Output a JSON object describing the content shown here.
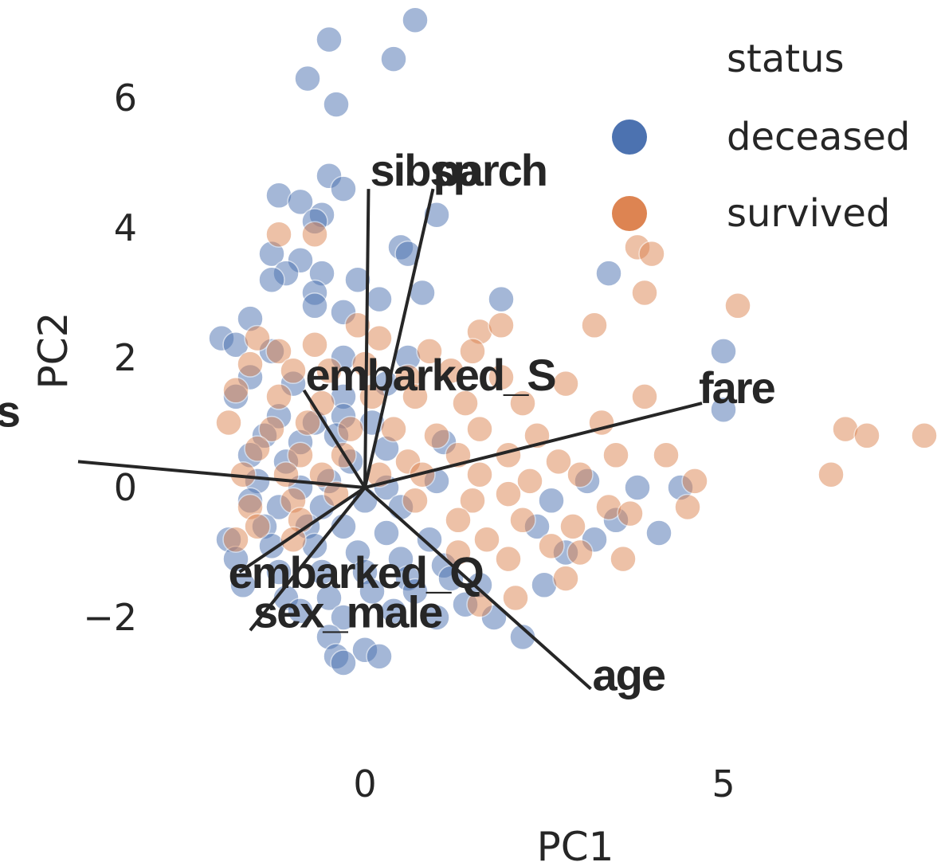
{
  "chart_data": {
    "type": "scatter",
    "xlabel": "PC1",
    "ylabel": "PC2",
    "xlim": [
      -4.25,
      8.0
    ],
    "ylim": [
      -3.6,
      7.3
    ],
    "x_ticks": [
      {
        "value": 0,
        "label": "0"
      },
      {
        "value": 5,
        "label": "5"
      }
    ],
    "y_ticks": [
      {
        "value": -2,
        "label": "−2"
      },
      {
        "value": 0,
        "label": "0"
      },
      {
        "value": 2,
        "label": "2"
      },
      {
        "value": 4,
        "label": "4"
      },
      {
        "value": 6,
        "label": "6"
      }
    ],
    "grid": false,
    "legend": {
      "title": "status",
      "placement": "top-right",
      "entries": [
        {
          "name": "deceased",
          "color": "#4c72b0"
        },
        {
          "name": "survived",
          "color": "#dd8452"
        }
      ]
    },
    "series": [
      {
        "name": "deceased",
        "color": "#4c72b0",
        "points": [
          [
            0.7,
            7.2
          ],
          [
            -0.5,
            6.9
          ],
          [
            0.4,
            6.6
          ],
          [
            -0.8,
            6.3
          ],
          [
            -0.4,
            5.9
          ],
          [
            -0.5,
            4.8
          ],
          [
            -0.3,
            4.6
          ],
          [
            -1.2,
            4.5
          ],
          [
            -0.9,
            4.4
          ],
          [
            -0.6,
            4.2
          ],
          [
            -0.7,
            4.1
          ],
          [
            1.0,
            4.2
          ],
          [
            -1.3,
            3.6
          ],
          [
            -0.9,
            3.5
          ],
          [
            0.5,
            3.7
          ],
          [
            0.6,
            3.6
          ],
          [
            -1.1,
            3.3
          ],
          [
            -0.6,
            3.3
          ],
          [
            -1.3,
            3.2
          ],
          [
            -0.1,
            3.2
          ],
          [
            -0.7,
            3.0
          ],
          [
            0.8,
            3.0
          ],
          [
            0.2,
            2.9
          ],
          [
            -0.7,
            2.8
          ],
          [
            1.9,
            2.9
          ],
          [
            -1.6,
            2.6
          ],
          [
            -0.3,
            2.7
          ],
          [
            3.4,
            3.3
          ],
          [
            -2.0,
            2.3
          ],
          [
            -1.8,
            2.2
          ],
          [
            -1.3,
            2.1
          ],
          [
            -0.3,
            2.0
          ],
          [
            0.6,
            2.0
          ],
          [
            5.0,
            2.1
          ],
          [
            -1.6,
            1.7
          ],
          [
            -1.0,
            1.6
          ],
          [
            -0.3,
            1.4
          ],
          [
            0.3,
            1.6
          ],
          [
            -1.8,
            1.4
          ],
          [
            -1.2,
            1.1
          ],
          [
            -0.7,
            1.0
          ],
          [
            -0.3,
            1.1
          ],
          [
            0.1,
            1.0
          ],
          [
            5.0,
            1.2
          ],
          [
            -1.4,
            0.8
          ],
          [
            -0.9,
            0.7
          ],
          [
            -0.4,
            0.8
          ],
          [
            0.3,
            0.6
          ],
          [
            1.1,
            0.7
          ],
          [
            -1.6,
            0.5
          ],
          [
            -1.1,
            0.4
          ],
          [
            -0.2,
            0.4
          ],
          [
            -1.5,
            0.1
          ],
          [
            -0.9,
            0.0
          ],
          [
            -0.5,
            0.1
          ],
          [
            0.3,
            0.0
          ],
          [
            1.0,
            0.1
          ],
          [
            3.1,
            0.1
          ],
          [
            3.8,
            0.0
          ],
          [
            4.4,
            0.0
          ],
          [
            -1.6,
            -0.2
          ],
          [
            -1.2,
            -0.3
          ],
          [
            -0.6,
            -0.3
          ],
          [
            0.0,
            -0.2
          ],
          [
            0.5,
            -0.3
          ],
          [
            2.6,
            -0.2
          ],
          [
            3.5,
            -0.5
          ],
          [
            4.1,
            -0.7
          ],
          [
            -1.4,
            -0.6
          ],
          [
            -0.8,
            -0.6
          ],
          [
            -0.3,
            -0.6
          ],
          [
            0.3,
            -0.7
          ],
          [
            0.9,
            -0.8
          ],
          [
            2.4,
            -0.6
          ],
          [
            3.2,
            -0.8
          ],
          [
            -1.9,
            -0.8
          ],
          [
            -1.3,
            -0.9
          ],
          [
            -0.7,
            -0.9
          ],
          [
            -0.1,
            -1.0
          ],
          [
            0.5,
            -1.1
          ],
          [
            1.1,
            -1.2
          ],
          [
            2.8,
            -1.0
          ],
          [
            -1.8,
            -1.1
          ],
          [
            -1.2,
            -1.3
          ],
          [
            -0.6,
            -1.3
          ],
          [
            0.0,
            -1.3
          ],
          [
            0.6,
            -1.4
          ],
          [
            1.2,
            -1.4
          ],
          [
            1.6,
            -1.5
          ],
          [
            2.5,
            -1.5
          ],
          [
            -1.7,
            -1.5
          ],
          [
            -1.1,
            -1.7
          ],
          [
            -0.5,
            -1.7
          ],
          [
            0.1,
            -1.6
          ],
          [
            0.7,
            -1.6
          ],
          [
            1.4,
            -1.8
          ],
          [
            -0.9,
            -1.9
          ],
          [
            -0.3,
            -2.0
          ],
          [
            0.4,
            -1.9
          ],
          [
            1.0,
            -2.0
          ],
          [
            1.8,
            -2.0
          ],
          [
            -0.5,
            -2.3
          ],
          [
            2.2,
            -2.3
          ],
          [
            -0.4,
            -2.6
          ],
          [
            0.0,
            -2.5
          ],
          [
            0.2,
            -2.6
          ],
          [
            -0.3,
            -2.7
          ]
        ]
      },
      {
        "name": "survived",
        "color": "#dd8452",
        "points": [
          [
            -1.2,
            3.9
          ],
          [
            -0.7,
            3.9
          ],
          [
            3.8,
            3.7
          ],
          [
            4.0,
            3.6
          ],
          [
            3.9,
            3.0
          ],
          [
            5.2,
            2.8
          ],
          [
            3.2,
            2.5
          ],
          [
            1.6,
            2.4
          ],
          [
            -0.1,
            2.5
          ],
          [
            1.9,
            2.5
          ],
          [
            -1.5,
            2.3
          ],
          [
            -1.2,
            2.1
          ],
          [
            -0.7,
            2.2
          ],
          [
            0.2,
            2.3
          ],
          [
            0.9,
            2.1
          ],
          [
            1.5,
            2.1
          ],
          [
            -1.6,
            1.9
          ],
          [
            -1.0,
            1.8
          ],
          [
            -0.5,
            1.8
          ],
          [
            0.0,
            1.9
          ],
          [
            0.6,
            1.7
          ],
          [
            1.2,
            1.8
          ],
          [
            1.9,
            1.7
          ],
          [
            2.8,
            1.6
          ],
          [
            -1.8,
            1.5
          ],
          [
            -1.2,
            1.4
          ],
          [
            -0.6,
            1.3
          ],
          [
            0.1,
            1.4
          ],
          [
            0.7,
            1.4
          ],
          [
            1.4,
            1.3
          ],
          [
            2.2,
            1.3
          ],
          [
            3.9,
            1.4
          ],
          [
            -1.9,
            1.0
          ],
          [
            -1.3,
            0.9
          ],
          [
            -0.8,
            1.0
          ],
          [
            -0.2,
            0.9
          ],
          [
            0.4,
            0.9
          ],
          [
            1.0,
            0.8
          ],
          [
            1.6,
            0.9
          ],
          [
            2.4,
            0.8
          ],
          [
            3.3,
            1.0
          ],
          [
            -1.5,
            0.6
          ],
          [
            -0.9,
            0.5
          ],
          [
            -0.3,
            0.5
          ],
          [
            0.6,
            0.4
          ],
          [
            1.3,
            0.5
          ],
          [
            2.0,
            0.5
          ],
          [
            2.7,
            0.4
          ],
          [
            3.5,
            0.5
          ],
          [
            4.2,
            0.5
          ],
          [
            6.7,
            0.9
          ],
          [
            7.0,
            0.8
          ],
          [
            7.8,
            0.8
          ],
          [
            6.5,
            0.2
          ],
          [
            -1.7,
            0.2
          ],
          [
            -1.1,
            0.2
          ],
          [
            -0.6,
            0.2
          ],
          [
            0.2,
            0.2
          ],
          [
            0.8,
            0.2
          ],
          [
            1.6,
            0.2
          ],
          [
            2.3,
            0.1
          ],
          [
            3.0,
            0.2
          ],
          [
            4.6,
            0.1
          ],
          [
            -1.6,
            -0.3
          ],
          [
            -1.0,
            -0.2
          ],
          [
            -0.4,
            -0.1
          ],
          [
            0.7,
            -0.2
          ],
          [
            1.5,
            -0.2
          ],
          [
            2.0,
            -0.1
          ],
          [
            3.4,
            -0.3
          ],
          [
            -1.5,
            -0.6
          ],
          [
            -0.9,
            -0.5
          ],
          [
            1.3,
            -0.5
          ],
          [
            2.2,
            -0.5
          ],
          [
            2.9,
            -0.6
          ],
          [
            3.7,
            -0.4
          ],
          [
            4.5,
            -0.3
          ],
          [
            -1.8,
            -0.8
          ],
          [
            -1.0,
            -0.8
          ],
          [
            1.7,
            -0.8
          ],
          [
            2.6,
            -0.9
          ],
          [
            3.0,
            -1.0
          ],
          [
            3.6,
            -1.1
          ],
          [
            1.3,
            -1.0
          ],
          [
            2.0,
            -1.1
          ],
          [
            2.8,
            -1.4
          ],
          [
            1.6,
            -1.8
          ],
          [
            2.1,
            -1.7
          ]
        ]
      }
    ],
    "loadings": [
      {
        "label": "sibsp",
        "x": 0.05,
        "y": 4.6
      },
      {
        "label": "parch",
        "x": 0.95,
        "y": 4.6
      },
      {
        "label": "fare",
        "x": 4.7,
        "y": 1.3
      },
      {
        "label": "embarked_S",
        "x": -0.85,
        "y": 1.5
      },
      {
        "label": "pclass",
        "x": -4.0,
        "y": 0.4
      },
      {
        "label": "embarked_Q",
        "x": -1.75,
        "y": -1.3
      },
      {
        "label": "sex_male",
        "x": -1.6,
        "y": -2.2
      },
      {
        "label": "age",
        "x": 3.15,
        "y": -3.1
      }
    ]
  }
}
